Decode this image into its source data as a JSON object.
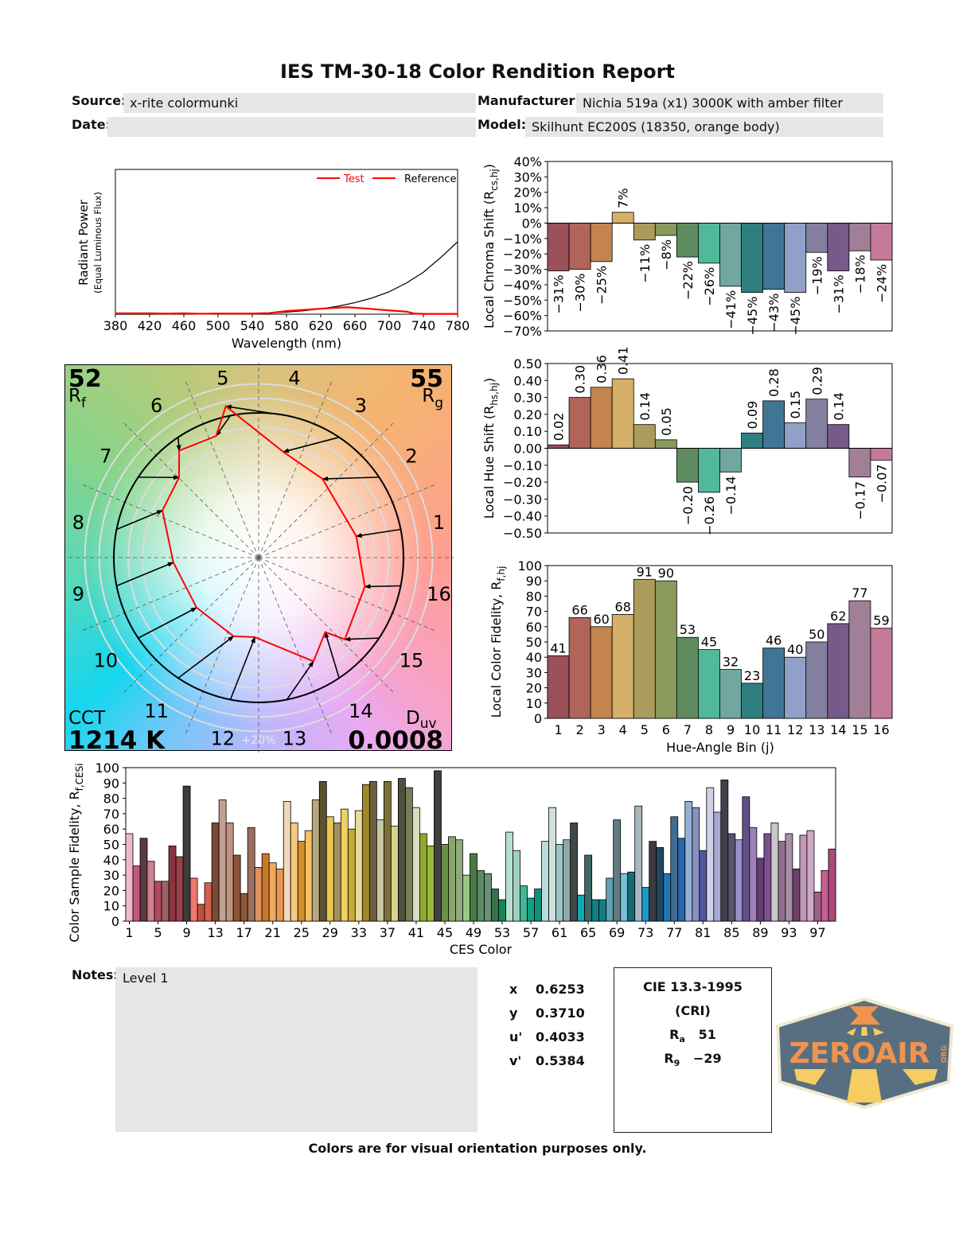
{
  "header": {
    "title": "IES TM-30-18 Color Rendition Report",
    "source_label": "Source:",
    "source_value": "x-rite colormunki",
    "date_label": "Date:",
    "date_value": "",
    "manufacturer_label": "Manufacturer:",
    "manufacturer_value": "Nichia 519a (x1) 3000K with amber filter",
    "model_label": "Model:",
    "model_value": "Skilhunt EC200S (18350, orange body)"
  },
  "vector_graph": {
    "rf_value": "52",
    "rf_label": "R",
    "rf_sub": "f",
    "rg_value": "55",
    "rg_label": "R",
    "rg_sub": "g",
    "cct_label": "CCT",
    "cct_value": "1214 K",
    "duv_label": "D",
    "duv_sub": "uv",
    "duv_value": "0.0008",
    "scale_label": "+20%",
    "bin_labels": [
      "1",
      "2",
      "3",
      "4",
      "5",
      "6",
      "7",
      "8",
      "9",
      "10",
      "11",
      "12",
      "13",
      "14",
      "15",
      "16"
    ],
    "test_color": "#ff0000",
    "reference_color": "#000000"
  },
  "chart_data": [
    {
      "type": "line",
      "xlabel": "Wavelength (nm)",
      "ylabel": "Radiant Power",
      "ylabel_sub": "(Equal Luminous Flux)",
      "xlim": [
        380,
        780
      ],
      "xticks": [
        "380",
        "420",
        "460",
        "500",
        "540",
        "580",
        "620",
        "660",
        "700",
        "740",
        "780"
      ],
      "legend": {
        "placement": "top-right",
        "entries": [
          "Test",
          "Reference"
        ]
      },
      "series": [
        {
          "name": "Test",
          "color": "#ff0000",
          "x": [
            380,
            420,
            440,
            460,
            480,
            500,
            540,
            560,
            580,
            600,
            620,
            640,
            650,
            660,
            680,
            700,
            720,
            730,
            740,
            780
          ],
          "y": [
            0.006,
            0.006,
            0.004,
            0.006,
            0.003,
            0.005,
            0.005,
            0.008,
            0.022,
            0.03,
            0.038,
            0.045,
            0.048,
            0.045,
            0.036,
            0.026,
            0.018,
            0.004,
            0.002,
            0.002
          ]
        },
        {
          "name": "Reference",
          "color": "#000000",
          "x": [
            380,
            500,
            540,
            560,
            580,
            600,
            620,
            640,
            660,
            680,
            700,
            720,
            740,
            760,
            780
          ],
          "y": [
            0.0,
            0.001,
            0.004,
            0.008,
            0.014,
            0.024,
            0.037,
            0.055,
            0.08,
            0.112,
            0.155,
            0.215,
            0.29,
            0.39,
            0.5
          ]
        }
      ]
    },
    {
      "type": "bar",
      "ylabel": "Local Chroma Shift (R",
      "ylabel_sub": "cs,hj",
      "ylabel_end": ")",
      "ylim": [
        -70,
        40
      ],
      "yticks": [
        "40%",
        "30%",
        "20%",
        "10%",
        "0%",
        "−10%",
        "−20%",
        "−30%",
        "−40%",
        "−50%",
        "−60%",
        "−70%"
      ],
      "categories": [
        "1",
        "2",
        "3",
        "4",
        "5",
        "6",
        "7",
        "8",
        "9",
        "10",
        "11",
        "12",
        "13",
        "14",
        "15",
        "16"
      ],
      "values": [
        -31,
        -30,
        -25,
        7,
        -11,
        -8,
        -22,
        -26,
        -41,
        -45,
        -43,
        -45,
        -19,
        -31,
        -18,
        -24
      ],
      "labels": [
        "−31%",
        "−30%",
        "−25%",
        "7%",
        "−11%",
        "−8%",
        "−22%",
        "−26%",
        "−41%",
        "−45%",
        "−43%",
        "−45%",
        "−19%",
        "−31%",
        "−18%",
        "−24%"
      ]
    },
    {
      "type": "bar",
      "ylabel": "Local Hue Shift (R",
      "ylabel_sub": "hs,hj",
      "ylabel_end": ")",
      "ylim": [
        -0.5,
        0.5
      ],
      "yticks": [
        "0.50",
        "0.40",
        "0.30",
        "0.20",
        "0.10",
        "0.00",
        "−0.10",
        "−0.20",
        "−0.30",
        "−0.40",
        "−0.50"
      ],
      "categories": [
        "1",
        "2",
        "3",
        "4",
        "5",
        "6",
        "7",
        "8",
        "9",
        "10",
        "11",
        "12",
        "13",
        "14",
        "15",
        "16"
      ],
      "values": [
        0.02,
        0.3,
        0.36,
        0.41,
        0.14,
        0.05,
        -0.2,
        -0.26,
        -0.14,
        0.09,
        0.28,
        0.15,
        0.29,
        0.14,
        -0.17,
        -0.07
      ],
      "labels": [
        "0.02",
        "0.30",
        "0.36",
        "0.41",
        "0.14",
        "0.05",
        "−0.20",
        "−0.26",
        "−0.14",
        "0.09",
        "0.28",
        "0.15",
        "0.29",
        "0.14",
        "−0.17",
        "−0.07"
      ]
    },
    {
      "type": "bar",
      "ylabel": "Local Color Fidelity, R",
      "ylabel_sub": "f,hj",
      "ylabel_end": "",
      "xlabel": "Hue-Angle Bin (j)",
      "ylim": [
        0,
        100
      ],
      "yticks": [
        "100",
        "90",
        "80",
        "70",
        "60",
        "50",
        "40",
        "30",
        "20",
        "10",
        "0"
      ],
      "categories": [
        "1",
        "2",
        "3",
        "4",
        "5",
        "6",
        "7",
        "8",
        "9",
        "10",
        "11",
        "12",
        "13",
        "14",
        "15",
        "16"
      ],
      "values": [
        41,
        66,
        60,
        68,
        91,
        90,
        53,
        45,
        32,
        23,
        46,
        40,
        50,
        62,
        77,
        59
      ],
      "labels": [
        "41",
        "66",
        "60",
        "68",
        "91",
        "90",
        "53",
        "45",
        "32",
        "23",
        "46",
        "40",
        "50",
        "62",
        "77",
        "59"
      ]
    },
    {
      "type": "bar",
      "ylabel": "Color Sample Fidelity, R",
      "ylabel_sub": "f,CESi",
      "ylabel_end": "",
      "xlabel": "CES Color",
      "ylim": [
        0,
        100
      ],
      "yticks": [
        "100",
        "90",
        "80",
        "70",
        "60",
        "50",
        "40",
        "30",
        "20",
        "10",
        "0"
      ],
      "xticks": [
        "1",
        "5",
        "9",
        "13",
        "17",
        "21",
        "25",
        "29",
        "33",
        "37",
        "41",
        "45",
        "49",
        "53",
        "57",
        "61",
        "65",
        "69",
        "73",
        "77",
        "81",
        "85",
        "89",
        "93",
        "97"
      ],
      "values": [
        57,
        36,
        54,
        39,
        26,
        26,
        49,
        42,
        88,
        28,
        11,
        25,
        64,
        79,
        64,
        43,
        18,
        61,
        35,
        44,
        38,
        34,
        78,
        64,
        52,
        59,
        79,
        91,
        68,
        64,
        73,
        60,
        72,
        89,
        91,
        66,
        91,
        62,
        93,
        87,
        74,
        57,
        49,
        98,
        50,
        55,
        53,
        30,
        44,
        33,
        31,
        21,
        14,
        58,
        46,
        23,
        15,
        21,
        52,
        74,
        50,
        53,
        64,
        17,
        43,
        14,
        14,
        28,
        66,
        31,
        32,
        75,
        22,
        52,
        48,
        31,
        68,
        54,
        78,
        74,
        46,
        87,
        71,
        92,
        57,
        53,
        81,
        61,
        41,
        57,
        64,
        52,
        57,
        34,
        56,
        59,
        19,
        33,
        47
      ],
      "colors": [
        "#f0b8cc",
        "#c45878",
        "#5a3c40",
        "#d07f90",
        "#b04a60",
        "#a06068",
        "#8a3440",
        "#9a4048",
        "#3c3c3c",
        "#f07870",
        "#c05040",
        "#d86050",
        "#7a4a38",
        "#c0a090",
        "#c09480",
        "#8a5438",
        "#905838",
        "#9a7060",
        "#e09060",
        "#c87828",
        "#f0a860",
        "#e89850",
        "#f0d8b8",
        "#f8c880",
        "#d09030",
        "#f8c060",
        "#b8a880",
        "#5c5030",
        "#e8c850",
        "#a09060",
        "#f0d060",
        "#c8a838",
        "#e8dc98",
        "#a08828",
        "#6a6040",
        "#c8c8a8",
        "#7a7038",
        "#d8d490",
        "#505040",
        "#7a7c58",
        "#d8dcc0",
        "#90a830",
        "#98b838",
        "#404040",
        "#6a9048",
        "#88a868",
        "#90aa80",
        "#98c888",
        "#4c7848",
        "#5a8c68",
        "#6a9078",
        "#387048",
        "#108858",
        "#b8e0d0",
        "#a0d0c0",
        "#40b898",
        "#10a080",
        "#109078",
        "#b8dcd8",
        "#d0e0dc",
        "#98c8c8",
        "#90a8a8",
        "#404848",
        "#10a8b0",
        "#3c6868",
        "#108080",
        "#108088",
        "#60a0b0",
        "#607c80",
        "#78c0d8",
        "#186878",
        "#a8b8c0",
        "#2098c8",
        "#3c3c40",
        "#204860",
        "#2078b8",
        "#406c90",
        "#2868a8",
        "#98b0d8",
        "#8890c0",
        "#5058a0",
        "#d0d0e8",
        "#a8a8d0",
        "#404048",
        "#585470",
        "#9890c8",
        "#605088",
        "#a080b8",
        "#604070",
        "#7c5090",
        "#c8c8c8",
        "#907090",
        "#a890a8",
        "#704068",
        "#c098b8",
        "#d0a8c8",
        "#a06088",
        "#c86090",
        "#a84c78"
      ]
    }
  ],
  "bin_colors": [
    "#9c505a",
    "#b0655a",
    "#c3844f",
    "#d4b068",
    "#ab9c5e",
    "#8a9a5c",
    "#5f8c5f",
    "#52b89a",
    "#6fa8a0",
    "#2f7f80",
    "#3f7595",
    "#90a0c8",
    "#8480a0",
    "#755a8a",
    "#a07f97",
    "#c57a9a"
  ],
  "notes": {
    "label": "Notes:",
    "value": "Level 1"
  },
  "chromaticity": [
    {
      "label": "x",
      "value": "0.6253"
    },
    {
      "label": "y",
      "value": "0.3710"
    },
    {
      "label": "u'",
      "value": "0.4033"
    },
    {
      "label": "v'",
      "value": "0.5384"
    }
  ],
  "cri": {
    "title": "CIE 13.3-1995",
    "subtitle": "(CRI)",
    "ra_label": "R",
    "ra_sub": "a",
    "ra_value": "51",
    "r9_label": "R",
    "r9_sub": "9",
    "r9_value": "−29"
  },
  "footer": "Colors are for visual orientation purposes only.",
  "logo": {
    "text": "ZEROAIR",
    "suffix": "ORG",
    "fill": "#4a6378",
    "text_color": "#f08a40",
    "accent": "#f6c955"
  }
}
